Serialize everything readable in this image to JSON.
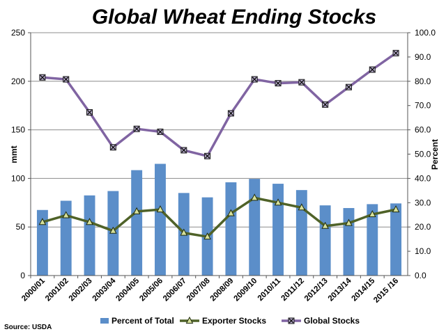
{
  "chart_data": {
    "type": "bar",
    "title": "Global Wheat Ending Stocks",
    "source": "Source: USDA",
    "categories": [
      "2000/01",
      "2001/02",
      "2002/03",
      "2003/04",
      "2004/05",
      "2005/06",
      "2006/07",
      "2007/08",
      "2008/09",
      "2009/10",
      "2010/11",
      "2011/12",
      "2012/13",
      "2013/14",
      "2014/15",
      "2015 /16"
    ],
    "ylabel_left": "mmt",
    "ylabel_right": "Percent",
    "ylim_left": [
      0,
      250
    ],
    "ylim_right": [
      0,
      100
    ],
    "yticks_left": [
      "0",
      "50",
      "100",
      "150",
      "200",
      "250"
    ],
    "yticks_right": [
      "0.0",
      "10.0",
      "20.0",
      "30.0",
      "40.0",
      "50.0",
      "60.0",
      "70.0",
      "80.0",
      "90.0",
      "100.0"
    ],
    "grid": true,
    "legend_position": "bottom",
    "series": [
      {
        "name": "Percent of Total",
        "kind": "bar",
        "axis": "right",
        "color": "#5b8ec9",
        "values": [
          27.0,
          30.8,
          33.0,
          34.8,
          43.4,
          46.0,
          34.0,
          32.2,
          38.4,
          39.8,
          37.8,
          35.2,
          28.9,
          27.8,
          29.4,
          29.7
        ]
      },
      {
        "name": "Exporter Stocks",
        "kind": "line",
        "axis": "left",
        "color": "#4f6228",
        "marker": "triangle",
        "values": [
          55,
          62,
          55,
          46,
          66,
          68,
          44,
          40,
          64,
          80,
          75,
          70,
          51,
          54,
          63,
          68
        ]
      },
      {
        "name": "Global Stocks",
        "kind": "line",
        "axis": "left",
        "color": "#8064a2",
        "marker": "x-square",
        "values": [
          204,
          202,
          168,
          132,
          151,
          148,
          129,
          123,
          167,
          202,
          198,
          199,
          176,
          194,
          212,
          229
        ]
      }
    ]
  }
}
